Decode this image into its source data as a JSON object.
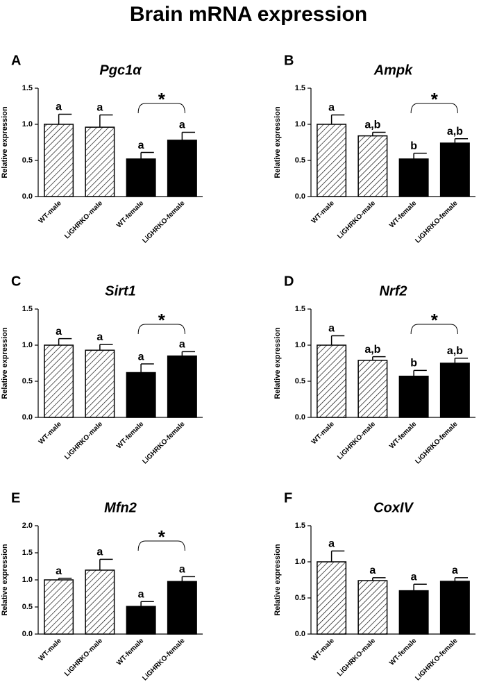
{
  "title": "Brain mRNA expression",
  "chart_data": [
    {
      "type": "bar",
      "label": "A",
      "title": "Pgc1α",
      "ylabel": "Relative expression",
      "categories": [
        "WT-male",
        "LiGHRKO-male",
        "WT-female",
        "LiGHRKO-female"
      ],
      "values": [
        1.0,
        0.96,
        0.52,
        0.78
      ],
      "errors": [
        0.14,
        0.17,
        0.09,
        0.11
      ],
      "letters": [
        "a",
        "a",
        "a",
        "a"
      ],
      "bracket_label": "*",
      "colors": [
        "#ffffff",
        "#ffffff",
        "#000000",
        "#000000"
      ],
      "hatch": [
        true,
        true,
        false,
        false
      ],
      "ylim": [
        0,
        1.5
      ],
      "yticks": [
        {
          "value": 0,
          "label": "0.0"
        },
        0.5,
        {
          "value": 1,
          "label": "1.0"
        },
        1.5
      ]
    },
    {
      "type": "bar",
      "label": "B",
      "title": "Ampk",
      "ylabel": "Relative expression",
      "categories": [
        "WT-male",
        "LiGHRKO-male",
        "WT-female",
        "LiGHRKO-female"
      ],
      "values": [
        1.0,
        0.84,
        0.52,
        0.74
      ],
      "errors": [
        0.13,
        0.05,
        0.08,
        0.06
      ],
      "letters": [
        "a",
        "a,b",
        "b",
        "a,b"
      ],
      "bracket_label": "*",
      "colors": [
        "#ffffff",
        "#ffffff",
        "#000000",
        "#000000"
      ],
      "hatch": [
        true,
        true,
        false,
        false
      ],
      "ylim": [
        0,
        1.5
      ],
      "yticks": [
        {
          "value": 0,
          "label": "0.0"
        },
        0.5,
        {
          "value": 1,
          "label": "1.0"
        },
        1.5
      ]
    },
    {
      "type": "bar",
      "label": "C",
      "title": "Sirt1",
      "ylabel": "Relative expression",
      "categories": [
        "WT-male",
        "LiGHRKO-male",
        "WT-female",
        "LiGHRKO-female"
      ],
      "values": [
        1.0,
        0.93,
        0.62,
        0.85
      ],
      "errors": [
        0.09,
        0.08,
        0.12,
        0.06
      ],
      "letters": [
        "a",
        "a",
        "a",
        "a"
      ],
      "bracket_label": "*",
      "colors": [
        "#ffffff",
        "#ffffff",
        "#000000",
        "#000000"
      ],
      "hatch": [
        true,
        true,
        false,
        false
      ],
      "ylim": [
        0,
        1.5
      ],
      "yticks": [
        {
          "value": 0,
          "label": "0.0"
        },
        0.5,
        {
          "value": 1,
          "label": "1.0"
        },
        1.5
      ]
    },
    {
      "type": "bar",
      "label": "D",
      "title": "Nrf2",
      "ylabel": "Relative expression",
      "categories": [
        "WT-male",
        "LiGHRKO-male",
        "WT-female",
        "LiGHRKO-female"
      ],
      "values": [
        1.0,
        0.79,
        0.57,
        0.75
      ],
      "errors": [
        0.13,
        0.05,
        0.08,
        0.07
      ],
      "letters": [
        "a",
        "a,b",
        "b",
        "a,b"
      ],
      "bracket_label": "*",
      "colors": [
        "#ffffff",
        "#ffffff",
        "#000000",
        "#000000"
      ],
      "hatch": [
        true,
        true,
        false,
        false
      ],
      "ylim": [
        0,
        1.5
      ],
      "yticks": [
        {
          "value": 0,
          "label": "0.0"
        },
        0.5,
        {
          "value": 1,
          "label": "1.0"
        },
        1.5
      ]
    },
    {
      "type": "bar",
      "label": "E",
      "title": "Mfn2",
      "ylabel": "Relative expression",
      "categories": [
        "WT-male",
        "LiGHRKO-male",
        "WT-female",
        "LiGHRKO-female"
      ],
      "values": [
        1.0,
        1.18,
        0.51,
        0.97
      ],
      "errors": [
        0.03,
        0.2,
        0.09,
        0.09
      ],
      "letters": [
        "a",
        "a",
        "a",
        "a"
      ],
      "bracket_label": "*",
      "colors": [
        "#ffffff",
        "#ffffff",
        "#000000",
        "#000000"
      ],
      "hatch": [
        true,
        true,
        false,
        false
      ],
      "ylim": [
        0,
        2
      ],
      "yticks": [
        {
          "value": 0,
          "label": "0.0"
        },
        0.5,
        {
          "value": 1,
          "label": "1.0"
        },
        1.5,
        {
          "value": 2,
          "label": "2.0"
        }
      ]
    },
    {
      "type": "bar",
      "label": "F",
      "title": "CoxIV",
      "ylabel": "Relative expression",
      "categories": [
        "WT-male",
        "LiGHRKO-male",
        "WT-female",
        "LiGHRKO-female"
      ],
      "values": [
        1.0,
        0.74,
        0.6,
        0.73
      ],
      "errors": [
        0.15,
        0.04,
        0.09,
        0.05
      ],
      "letters": [
        "a",
        "a",
        "a",
        "a"
      ],
      "colors": [
        "#ffffff",
        "#ffffff",
        "#000000",
        "#000000"
      ],
      "hatch": [
        true,
        true,
        false,
        false
      ],
      "ylim": [
        0,
        1.5
      ],
      "yticks": [
        {
          "value": 0,
          "label": "0.0"
        },
        0.5,
        {
          "value": 1,
          "label": "1.0"
        },
        1.5
      ]
    }
  ]
}
